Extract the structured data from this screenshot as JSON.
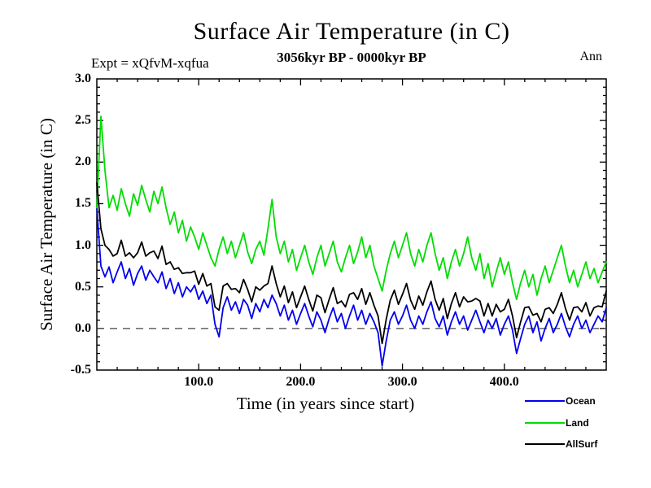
{
  "header": {
    "title": "Surface Air Temperature (in C)",
    "subtitle": "3056kyr BP - 0000kyr BP",
    "experiment_label": "Expt = xQfvM-xqfua",
    "period_label": "Ann"
  },
  "chart_data": {
    "type": "line",
    "title": "Surface Air Temperature (in C)",
    "subtitle": "3056kyr BP - 0000kyr BP",
    "annotations": {
      "experiment": "Expt = xQfvM-xqfua",
      "season": "Ann"
    },
    "xlabel": "Time (in years since start)",
    "ylabel": "Surface Air Temperature (in C)",
    "xlim": [
      0,
      500
    ],
    "ylim": [
      -0.5,
      3.0
    ],
    "x_major_ticks": [
      100,
      200,
      300,
      400
    ],
    "x_major_tick_labels": [
      "100.0",
      "200.0",
      "300.0",
      "400.0"
    ],
    "x_minor_tick_step": 20,
    "y_major_ticks": [
      -0.5,
      0.0,
      0.5,
      1.0,
      1.5,
      2.0,
      2.5,
      3.0
    ],
    "y_major_tick_labels": [
      "-0.5",
      "0.0",
      "0.5",
      "1.0",
      "1.5",
      "2.0",
      "2.5",
      "3.0"
    ],
    "y_minor_tick_step": 0.1,
    "grid": false,
    "zero_line": {
      "value": 0.0,
      "style": "dashed",
      "color": "#444444"
    },
    "legend_position": "bottom-right",
    "x_start": 0,
    "x_step": 4,
    "series": [
      {
        "name": "Ocean",
        "color": "#0000ee",
        "values": [
          1.45,
          0.75,
          0.62,
          0.74,
          0.55,
          0.68,
          0.8,
          0.6,
          0.72,
          0.52,
          0.66,
          0.75,
          0.58,
          0.7,
          0.62,
          0.55,
          0.68,
          0.48,
          0.6,
          0.42,
          0.55,
          0.38,
          0.5,
          0.44,
          0.52,
          0.35,
          0.45,
          0.3,
          0.4,
          0.05,
          -0.1,
          0.25,
          0.38,
          0.22,
          0.32,
          0.18,
          0.35,
          0.28,
          0.12,
          0.3,
          0.2,
          0.35,
          0.25,
          0.4,
          0.3,
          0.15,
          0.28,
          0.1,
          0.22,
          0.05,
          0.18,
          0.3,
          0.15,
          0.02,
          0.2,
          0.1,
          -0.05,
          0.12,
          0.25,
          0.08,
          0.18,
          0.0,
          0.15,
          0.28,
          0.1,
          0.22,
          0.05,
          0.18,
          0.08,
          -0.05,
          -0.45,
          -0.15,
          0.1,
          0.2,
          0.05,
          0.15,
          0.28,
          0.1,
          0.0,
          0.15,
          0.05,
          0.2,
          0.32,
          0.12,
          0.02,
          0.15,
          -0.08,
          0.08,
          0.2,
          0.05,
          0.15,
          -0.02,
          0.1,
          0.22,
          0.08,
          -0.05,
          0.1,
          0.0,
          0.12,
          -0.08,
          0.05,
          0.15,
          -0.02,
          -0.3,
          -0.12,
          0.05,
          0.15,
          -0.05,
          0.08,
          -0.15,
          0.0,
          0.12,
          -0.05,
          0.05,
          0.18,
          0.02,
          -0.1,
          0.05,
          0.15,
          0.0,
          0.1,
          -0.05,
          0.05,
          0.15,
          0.08,
          0.25
        ]
      },
      {
        "name": "Land",
        "color": "#00dd00",
        "values": [
          1.45,
          2.55,
          1.9,
          1.45,
          1.6,
          1.42,
          1.68,
          1.5,
          1.35,
          1.62,
          1.48,
          1.72,
          1.55,
          1.4,
          1.65,
          1.5,
          1.7,
          1.45,
          1.25,
          1.4,
          1.15,
          1.3,
          1.05,
          1.22,
          1.1,
          0.95,
          1.15,
          1.0,
          0.85,
          0.75,
          0.95,
          1.1,
          0.9,
          1.05,
          0.85,
          1.0,
          1.15,
          0.92,
          0.78,
          0.95,
          1.05,
          0.88,
          1.2,
          1.55,
          1.1,
          0.9,
          1.05,
          0.8,
          0.95,
          0.7,
          0.85,
          1.0,
          0.8,
          0.65,
          0.85,
          1.0,
          0.75,
          0.9,
          1.05,
          0.8,
          0.68,
          0.85,
          1.0,
          0.78,
          0.92,
          1.1,
          0.85,
          1.0,
          0.75,
          0.6,
          0.45,
          0.7,
          0.9,
          1.05,
          0.85,
          1.0,
          1.15,
          0.9,
          0.75,
          0.95,
          0.8,
          1.0,
          1.15,
          0.9,
          0.7,
          0.85,
          0.6,
          0.8,
          0.95,
          0.75,
          0.9,
          1.1,
          0.85,
          0.7,
          0.9,
          0.6,
          0.78,
          0.5,
          0.68,
          0.85,
          0.65,
          0.8,
          0.55,
          0.35,
          0.55,
          0.7,
          0.5,
          0.65,
          0.4,
          0.6,
          0.75,
          0.55,
          0.7,
          0.85,
          1.0,
          0.75,
          0.55,
          0.7,
          0.5,
          0.65,
          0.8,
          0.6,
          0.72,
          0.55,
          0.68,
          0.8
        ]
      },
      {
        "name": "AllSurf",
        "color": "#000000",
        "values": [
          1.75,
          1.2,
          1.0,
          0.95,
          0.87,
          0.9,
          1.06,
          0.87,
          0.91,
          0.85,
          0.91,
          1.04,
          0.87,
          0.91,
          0.93,
          0.84,
          0.99,
          0.77,
          0.8,
          0.71,
          0.73,
          0.66,
          0.67,
          0.67,
          0.69,
          0.53,
          0.66,
          0.51,
          0.54,
          0.26,
          0.22,
          0.51,
          0.54,
          0.47,
          0.48,
          0.43,
          0.59,
          0.47,
          0.32,
          0.5,
          0.46,
          0.51,
          0.54,
          0.75,
          0.54,
          0.38,
          0.51,
          0.31,
          0.44,
          0.25,
          0.38,
          0.51,
          0.35,
          0.21,
          0.4,
          0.37,
          0.19,
          0.35,
          0.49,
          0.3,
          0.33,
          0.26,
          0.41,
          0.43,
          0.35,
          0.48,
          0.29,
          0.43,
          0.28,
          0.15,
          -0.18,
          0.11,
          0.34,
          0.46,
          0.29,
          0.41,
          0.54,
          0.34,
          0.23,
          0.39,
          0.28,
          0.44,
          0.57,
          0.35,
          0.22,
          0.36,
          0.12,
          0.3,
          0.43,
          0.26,
          0.38,
          0.32,
          0.33,
          0.36,
          0.33,
          0.15,
          0.3,
          0.15,
          0.29,
          0.2,
          0.23,
          0.35,
          0.15,
          -0.11,
          0.08,
          0.25,
          0.26,
          0.16,
          0.18,
          0.08,
          0.23,
          0.25,
          0.18,
          0.29,
          0.43,
          0.24,
          0.1,
          0.25,
          0.26,
          0.2,
          0.31,
          0.15,
          0.25,
          0.27,
          0.26,
          0.45
        ]
      }
    ]
  }
}
